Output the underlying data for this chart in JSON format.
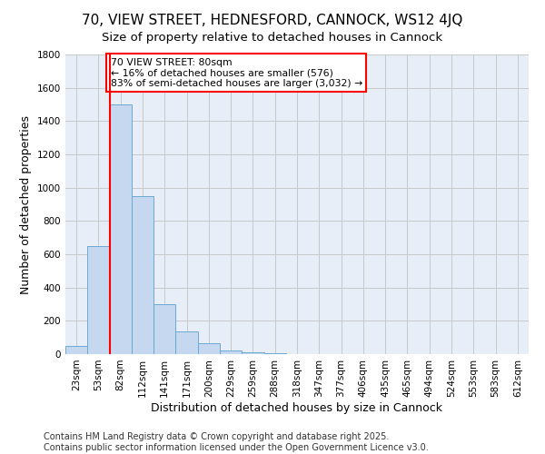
{
  "title": "70, VIEW STREET, HEDNESFORD, CANNOCK, WS12 4JQ",
  "subtitle": "Size of property relative to detached houses in Cannock",
  "xlabel": "Distribution of detached houses by size in Cannock",
  "ylabel": "Number of detached properties",
  "categories": [
    "23sqm",
    "53sqm",
    "82sqm",
    "112sqm",
    "141sqm",
    "171sqm",
    "200sqm",
    "229sqm",
    "259sqm",
    "288sqm",
    "318sqm",
    "347sqm",
    "377sqm",
    "406sqm",
    "435sqm",
    "465sqm",
    "494sqm",
    "524sqm",
    "553sqm",
    "583sqm",
    "612sqm"
  ],
  "values": [
    50,
    650,
    1500,
    950,
    300,
    135,
    65,
    20,
    10,
    5,
    2,
    1,
    1,
    0,
    0,
    0,
    0,
    0,
    0,
    0,
    0
  ],
  "bar_color": "#c5d8f0",
  "bar_edge_color": "#6aaad4",
  "red_line_index": 2,
  "annotation_text": "70 VIEW STREET: 80sqm\n← 16% of detached houses are smaller (576)\n83% of semi-detached houses are larger (3,032) →",
  "ylim": [
    0,
    1800
  ],
  "yticks": [
    0,
    200,
    400,
    600,
    800,
    1000,
    1200,
    1400,
    1600,
    1800
  ],
  "plot_background": "#e8eef8",
  "grid_color": "#c8c8c8",
  "footer": "Contains HM Land Registry data © Crown copyright and database right 2025.\nContains public sector information licensed under the Open Government Licence v3.0.",
  "title_fontsize": 11,
  "label_fontsize": 9,
  "tick_fontsize": 7.5,
  "footer_fontsize": 7
}
